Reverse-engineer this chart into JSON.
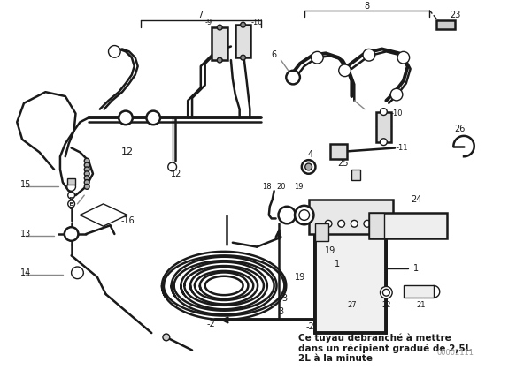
{
  "bg_color": "#ffffff",
  "fig_width": 5.92,
  "fig_height": 4.19,
  "dpi": 100,
  "annotation_text": "Ce tuyau débranché à mettre\ndans un récipient gradué de 2,5L\n2L à la minute",
  "watermark": "00002111",
  "line_color": "#1a1a1a"
}
